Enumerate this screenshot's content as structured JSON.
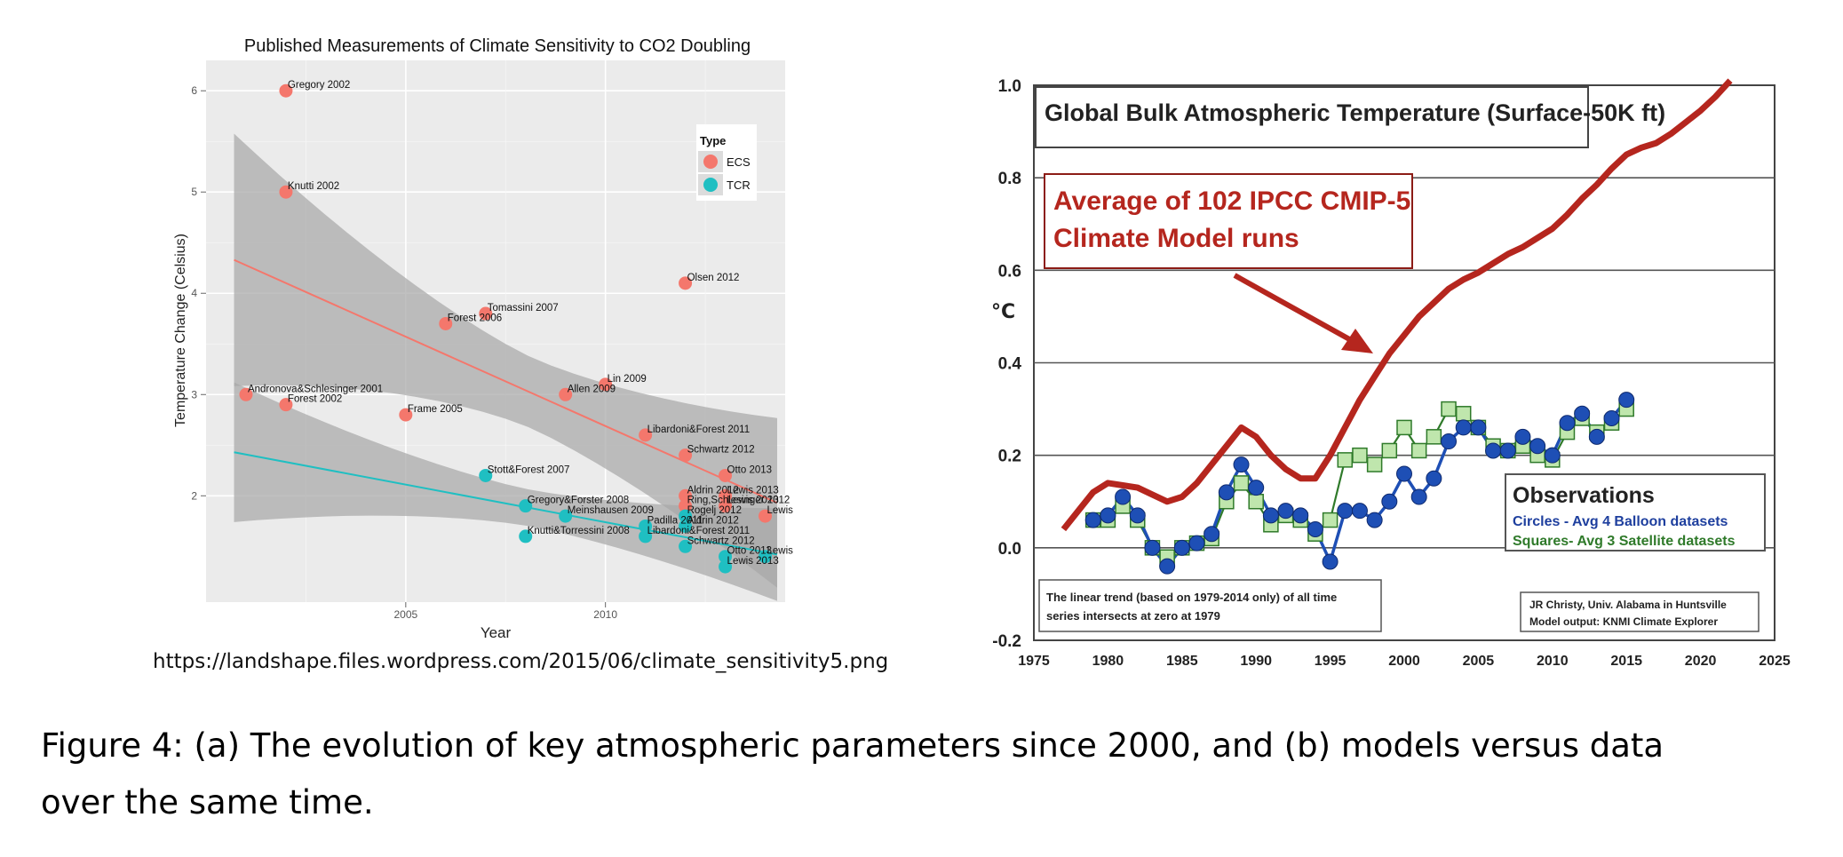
{
  "chart_data": [
    {
      "type": "scatter",
      "title": "Published Measurements of Climate Sensitivity to CO2 Doubling",
      "xlabel": "Year",
      "ylabel": "Temperature Change (Celsius)",
      "xlim": [
        2000,
        2014.5
      ],
      "ylim": [
        0.95,
        6.3
      ],
      "x_ticks": [
        2005,
        2010
      ],
      "y_ticks": [
        2,
        3,
        4,
        5,
        6
      ],
      "legend": {
        "title": "Type",
        "position": "top-right",
        "entries": [
          "ECS",
          "TCR"
        ]
      },
      "colors": {
        "ECS": "#f4776c",
        "TCR": "#1fbfc2",
        "panel": "#ebebeb",
        "grid": "#ffffff",
        "ribbon": "#a8a8a8"
      },
      "series": [
        {
          "name": "ECS",
          "points": [
            {
              "x": 2002,
              "y": 6.0,
              "label": "Gregory 2002"
            },
            {
              "x": 2002,
              "y": 5.0,
              "label": "Knutti 2002"
            },
            {
              "x": 2012,
              "y": 4.1,
              "label": "Olsen 2012"
            },
            {
              "x": 2007,
              "y": 3.8,
              "label": "Tomassini 2007"
            },
            {
              "x": 2006,
              "y": 3.7,
              "label": "Forest 2006"
            },
            {
              "x": 2010,
              "y": 3.1,
              "label": "Lin 2009"
            },
            {
              "x": 2009,
              "y": 3.0,
              "label": "Allen 2009"
            },
            {
              "x": 2001,
              "y": 3.0,
              "label": "Andronova&Schlesinger 2001"
            },
            {
              "x": 2002,
              "y": 2.9,
              "label": "Forest 2002"
            },
            {
              "x": 2005,
              "y": 2.8,
              "label": "Frame 2005"
            },
            {
              "x": 2011,
              "y": 2.6,
              "label": "Libardoni&Forest 2011"
            },
            {
              "x": 2012,
              "y": 2.4,
              "label": "Schwartz 2012"
            },
            {
              "x": 2013,
              "y": 2.2,
              "label": "Otto 2013"
            },
            {
              "x": 2013,
              "y": 2.0,
              "label": "Lewis 2013"
            },
            {
              "x": 2012,
              "y": 2.0,
              "label": "Aldrin 2012"
            },
            {
              "x": 2013,
              "y": 1.9,
              "label": "Lewis 2013"
            },
            {
              "x": 2012,
              "y": 1.9,
              "label": "Ring,Schlesinger 2012"
            },
            {
              "x": 2014,
              "y": 1.8,
              "label": "Lewis"
            }
          ]
        },
        {
          "name": "TCR",
          "points": [
            {
              "x": 2007,
              "y": 2.2,
              "label": "Stott&Forest 2007"
            },
            {
              "x": 2008,
              "y": 1.9,
              "label": "Gregory&Forster 2008"
            },
            {
              "x": 2009,
              "y": 1.8,
              "label": "Meinshausen 2009"
            },
            {
              "x": 2012,
              "y": 1.8,
              "label": "Rogelj 2012"
            },
            {
              "x": 2011,
              "y": 1.7,
              "label": "Padilla 2011"
            },
            {
              "x": 2012,
              "y": 1.7,
              "label": "Aldrin 2012"
            },
            {
              "x": 2008,
              "y": 1.6,
              "label": "Knutti&Torressini 2008"
            },
            {
              "x": 2011,
              "y": 1.6,
              "label": "Libardoni&Forest 2011"
            },
            {
              "x": 2012,
              "y": 1.5,
              "label": "Schwartz 2012"
            },
            {
              "x": 2013,
              "y": 1.4,
              "label": "Otto 2013"
            },
            {
              "x": 2013,
              "y": 1.3,
              "label": "Lewis 2013"
            },
            {
              "x": 2014,
              "y": 1.4,
              "label": "Lewis"
            }
          ]
        }
      ],
      "trendlines": [
        {
          "name": "ECS",
          "x": [
            2000.7,
            2014.3
          ],
          "y": [
            4.33,
            1.93
          ],
          "band": [
            1.0,
            0.35
          ]
        },
        {
          "name": "TCR",
          "x": [
            2000.7,
            2014.3
          ],
          "y": [
            2.43,
            1.42
          ],
          "band": [
            0.55,
            0.18
          ]
        }
      ]
    },
    {
      "type": "line",
      "title": "Global Bulk Atmospheric Temperature (Surface-50K ft)",
      "ylabel": "°C",
      "xlim": [
        1975,
        2025
      ],
      "ylim": [
        -0.2,
        1.0
      ],
      "x_ticks": [
        1975,
        1980,
        1985,
        1990,
        1995,
        2000,
        2005,
        2010,
        2015,
        2020,
        2025
      ],
      "y_ticks": [
        "1.0",
        "0.8",
        "0.6",
        "0.4",
        "0.2",
        "0.0",
        "-0.2"
      ],
      "colors": {
        "model": "#b5261e",
        "balloon": "#1e4fb5",
        "satellite": "#2f7a2a",
        "satellite_fill": "#bfe6ad"
      },
      "series": [
        {
          "name": "Average of 102 IPCC CMIP-5 Climate Model runs",
          "x": [
            1977,
            1978,
            1979,
            1980,
            1981,
            1982,
            1983,
            1984,
            1985,
            1986,
            1987,
            1988,
            1989,
            1990,
            1991,
            1992,
            1993,
            1994,
            1995,
            1996,
            1997,
            1998,
            1999,
            2000,
            2001,
            2002,
            2003,
            2004,
            2005,
            2006,
            2007,
            2008,
            2009,
            2010,
            2011,
            2012,
            2013,
            2014,
            2015,
            2016,
            2017,
            2018,
            2019,
            2020,
            2021,
            2022
          ],
          "y": [
            0.04,
            0.08,
            0.12,
            0.14,
            0.135,
            0.13,
            0.115,
            0.1,
            0.11,
            0.14,
            0.18,
            0.22,
            0.26,
            0.24,
            0.2,
            0.17,
            0.15,
            0.15,
            0.2,
            0.26,
            0.32,
            0.37,
            0.42,
            0.46,
            0.5,
            0.53,
            0.56,
            0.58,
            0.595,
            0.615,
            0.635,
            0.65,
            0.67,
            0.69,
            0.72,
            0.755,
            0.785,
            0.82,
            0.85,
            0.865,
            0.875,
            0.895,
            0.92,
            0.945,
            0.975,
            1.01
          ]
        },
        {
          "name": "Circles - Avg 4 Balloon datasets",
          "x": [
            1979,
            1980,
            1981,
            1982,
            1983,
            1984,
            1985,
            1986,
            1987,
            1988,
            1989,
            1990,
            1991,
            1992,
            1993,
            1994,
            1995,
            1996,
            1997,
            1998,
            1999,
            2000,
            2001,
            2002,
            2003,
            2004,
            2005,
            2006,
            2007,
            2008,
            2009,
            2010,
            2011,
            2012,
            2013,
            2014,
            2015
          ],
          "y": [
            0.06,
            0.07,
            0.11,
            0.07,
            0.0,
            -0.04,
            0.0,
            0.01,
            0.03,
            0.12,
            0.18,
            0.13,
            0.07,
            0.08,
            0.07,
            0.04,
            -0.03,
            0.08,
            0.08,
            0.06,
            0.1,
            0.16,
            0.11,
            0.15,
            0.23,
            0.26,
            0.26,
            0.21,
            0.21,
            0.24,
            0.22,
            0.2,
            0.27,
            0.29,
            0.24,
            0.28,
            0.32
          ]
        },
        {
          "name": "Squares- Avg 3 Satellite datasets",
          "x": [
            1979,
            1980,
            1981,
            1982,
            1983,
            1984,
            1985,
            1986,
            1987,
            1988,
            1989,
            1990,
            1991,
            1992,
            1993,
            1994,
            1995,
            1996,
            1997,
            1998,
            1999,
            2000,
            2001,
            2002,
            2003,
            2004,
            2005,
            2006,
            2007,
            2008,
            2009,
            2010,
            2011,
            2012,
            2013,
            2014,
            2015
          ],
          "y": [
            0.06,
            0.06,
            0.09,
            0.06,
            0.0,
            -0.02,
            0.0,
            0.01,
            0.02,
            0.1,
            0.14,
            0.1,
            0.05,
            0.07,
            0.06,
            0.03,
            0.06,
            0.19,
            0.2,
            0.18,
            0.21,
            0.26,
            0.21,
            0.24,
            0.3,
            0.29,
            0.26,
            0.22,
            0.21,
            0.22,
            0.2,
            0.19,
            0.25,
            0.28,
            0.25,
            0.27,
            0.3
          ]
        }
      ],
      "annotations": {
        "model_label_lines": [
          "Average of 102 IPCC CMIP-5",
          "Climate Model runs"
        ],
        "observations_title": "Observations",
        "circles_label": "Circles - Avg 4 Balloon datasets",
        "squares_label": "Squares- Avg 3 Satellite datasets",
        "trend_note_lines": [
          "The linear trend (based on 1979-2014 only) of all time",
          "series intersects at zero at 1979"
        ],
        "credit_lines": [
          "JR Christy, Univ. Alabama in Huntsville",
          "Model output: KNMI Climate Explorer"
        ]
      }
    }
  ],
  "source_url": "https://landshape.files.wordpress.com/2015/06/climate_sensitivity5.png",
  "caption_lines": [
    "Figure 4:  (a) The evolution of key atmospheric parameters since 2000, and (b) models versus data",
    "over the same time."
  ]
}
